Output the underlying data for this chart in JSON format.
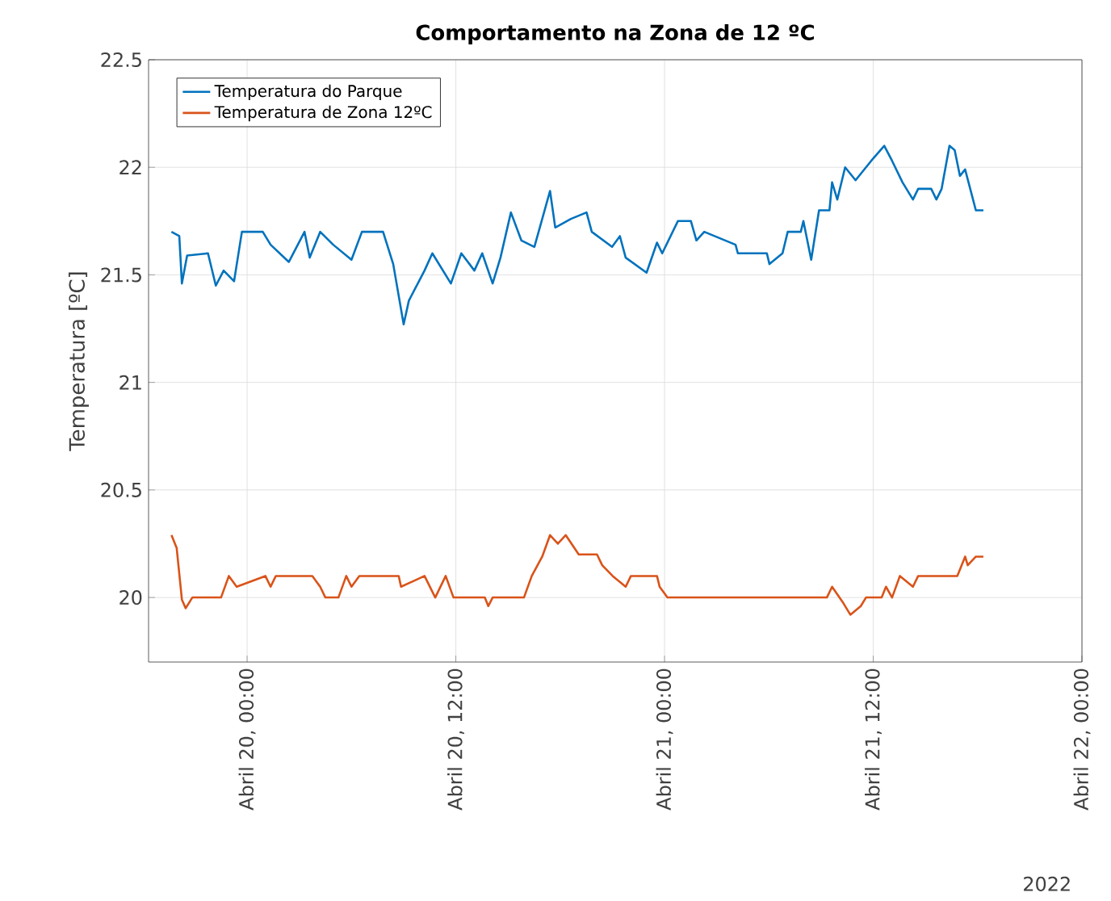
{
  "chart_data": {
    "type": "line",
    "title": "Comportamento na Zona de 12 ºC",
    "ylabel": "Temperatura [ºC]",
    "xlim": [
      "2022-04-19T18:20",
      "2022-04-22T00:00"
    ],
    "xticks": [
      {
        "value": "2022-04-20T00:00",
        "label": "Abril 20, 00:00"
      },
      {
        "value": "2022-04-20T12:00",
        "label": "Abril 20, 12:00"
      },
      {
        "value": "2022-04-21T00:00",
        "label": "Abril 21, 00:00"
      },
      {
        "value": "2022-04-21T12:00",
        "label": "Abril 21, 12:00"
      },
      {
        "value": "2022-04-22T00:00",
        "label": "Abril 22, 00:00"
      }
    ],
    "ylim": [
      19.7,
      22.5
    ],
    "yticks": [
      20,
      20.5,
      21,
      21.5,
      22,
      22.5
    ],
    "grid": true,
    "legend": "top left",
    "marker": "none",
    "line_style": "solid",
    "annotations": [
      "2022"
    ],
    "series": [
      {
        "name": "Temperatura do Parque",
        "color": "#0072bd",
        "x": [
          "2022-04-19T19:39",
          "2022-04-19T20:06",
          "2022-04-19T20:15",
          "2022-04-19T20:33",
          "2022-04-19T21:45",
          "2022-04-19T22:12",
          "2022-04-19T22:39",
          "2022-04-19T23:15",
          "2022-04-19T23:42",
          "2022-04-20T00:54",
          "2022-04-20T01:21",
          "2022-04-20T02:24",
          "2022-04-20T03:18",
          "2022-04-20T03:36",
          "2022-04-20T04:12",
          "2022-04-20T04:57",
          "2022-04-20T06:00",
          "2022-04-20T06:36",
          "2022-04-20T07:49",
          "2022-04-20T08:24",
          "2022-04-20T09:00",
          "2022-04-20T09:18",
          "2022-04-20T10:12",
          "2022-04-20T10:39",
          "2022-04-20T11:43",
          "2022-04-20T12:19",
          "2022-04-20T13:04",
          "2022-04-20T13:31",
          "2022-04-20T14:07",
          "2022-04-20T14:34",
          "2022-04-20T15:10",
          "2022-04-20T15:46",
          "2022-04-20T16:31",
          "2022-04-20T17:25",
          "2022-04-20T17:43",
          "2022-04-20T18:37",
          "2022-04-20T19:31",
          "2022-04-20T19:49",
          "2022-04-20T20:59",
          "2022-04-20T21:26",
          "2022-04-20T21:46",
          "2022-04-20T22:58",
          "2022-04-20T23:34",
          "2022-04-20T23:52",
          "2022-04-21T00:46",
          "2022-04-21T01:31",
          "2022-04-21T01:50",
          "2022-04-21T02:17",
          "2022-04-21T04:05",
          "2022-04-21T04:13",
          "2022-04-21T05:53",
          "2022-04-21T06:02",
          "2022-04-21T06:47",
          "2022-04-21T07:05",
          "2022-04-21T07:50",
          "2022-04-21T07:59",
          "2022-04-21T08:26",
          "2022-04-21T08:53",
          "2022-04-21T09:29",
          "2022-04-21T09:38",
          "2022-04-21T09:56",
          "2022-04-21T10:23",
          "2022-04-21T10:59",
          "2022-04-21T11:53",
          "2022-04-21T12:38",
          "2022-04-21T13:05",
          "2022-04-21T13:41",
          "2022-04-21T14:17",
          "2022-04-21T14:35",
          "2022-04-21T15:20",
          "2022-04-21T15:38",
          "2022-04-21T15:56",
          "2022-04-21T16:23",
          "2022-04-21T16:41",
          "2022-04-21T16:59",
          "2022-04-21T17:17",
          "2022-04-21T17:54",
          "2022-04-21T18:20"
        ],
        "values": [
          21.7,
          21.68,
          21.46,
          21.59,
          21.6,
          21.45,
          21.52,
          21.47,
          21.7,
          21.7,
          21.64,
          21.56,
          21.7,
          21.58,
          21.7,
          21.64,
          21.57,
          21.7,
          21.7,
          21.55,
          21.27,
          21.38,
          21.52,
          21.6,
          21.46,
          21.6,
          21.52,
          21.6,
          21.46,
          21.58,
          21.79,
          21.66,
          21.63,
          21.89,
          21.72,
          21.76,
          21.79,
          21.7,
          21.63,
          21.68,
          21.58,
          21.51,
          21.65,
          21.6,
          21.75,
          21.75,
          21.66,
          21.7,
          21.64,
          21.6,
          21.6,
          21.55,
          21.6,
          21.7,
          21.7,
          21.75,
          21.57,
          21.8,
          21.8,
          21.93,
          21.85,
          22.0,
          21.94,
          22.03,
          22.1,
          22.03,
          21.93,
          21.85,
          21.9,
          21.9,
          21.85,
          21.9,
          22.1,
          22.08,
          21.96,
          21.99,
          21.8,
          21.8
        ]
      },
      {
        "name": "Temperatura de Zona 12ºC",
        "color": "#d95319",
        "x": [
          "2022-04-19T19:39",
          "2022-04-19T19:57",
          "2022-04-19T20:15",
          "2022-04-19T20:28",
          "2022-04-19T20:51",
          "2022-04-19T22:30",
          "2022-04-19T22:57",
          "2022-04-19T23:24",
          "2022-04-20T01:03",
          "2022-04-20T01:21",
          "2022-04-20T01:39",
          "2022-04-20T03:45",
          "2022-04-20T04:12",
          "2022-04-20T04:30",
          "2022-04-20T05:15",
          "2022-04-20T05:42",
          "2022-04-20T06:00",
          "2022-04-20T06:27",
          "2022-04-20T08:43",
          "2022-04-20T08:51",
          "2022-04-20T10:12",
          "2022-04-20T10:49",
          "2022-04-20T11:25",
          "2022-04-20T11:52",
          "2022-04-20T13:40",
          "2022-04-20T13:52",
          "2022-04-20T14:07",
          "2022-04-20T15:55",
          "2022-04-20T16:22",
          "2022-04-20T16:58",
          "2022-04-20T17:25",
          "2022-04-20T17:52",
          "2022-04-20T18:19",
          "2022-04-20T19:04",
          "2022-04-20T20:07",
          "2022-04-20T20:25",
          "2022-04-20T21:01",
          "2022-04-20T21:46",
          "2022-04-20T22:04",
          "2022-04-20T23:34",
          "2022-04-20T23:43",
          "2022-04-21T00:10",
          "2022-04-21T09:20",
          "2022-04-21T09:38",
          "2022-04-21T10:14",
          "2022-04-21T10:41",
          "2022-04-21T11:17",
          "2022-04-21T11:35",
          "2022-04-21T12:29",
          "2022-04-21T12:44",
          "2022-04-21T13:05",
          "2022-04-21T13:32",
          "2022-04-21T14:17",
          "2022-04-21T14:35",
          "2022-04-21T16:50",
          "2022-04-21T17:17",
          "2022-04-21T17:26",
          "2022-04-21T17:54",
          "2022-04-21T18:20"
        ],
        "values": [
          20.29,
          20.23,
          19.99,
          19.95,
          20.0,
          20.0,
          20.1,
          20.05,
          20.1,
          20.05,
          20.1,
          20.1,
          20.05,
          20.0,
          20.0,
          20.1,
          20.05,
          20.1,
          20.1,
          20.05,
          20.1,
          20.0,
          20.1,
          20.0,
          20.0,
          19.96,
          20.0,
          20.0,
          20.1,
          20.19,
          20.29,
          20.25,
          20.29,
          20.2,
          20.2,
          20.15,
          20.1,
          20.05,
          20.1,
          20.1,
          20.05,
          20.0,
          20.0,
          20.05,
          19.98,
          19.92,
          19.96,
          20.0,
          20.0,
          20.05,
          20.0,
          20.1,
          20.05,
          20.1,
          20.1,
          20.19,
          20.15,
          20.19,
          20.19
        ]
      }
    ]
  }
}
